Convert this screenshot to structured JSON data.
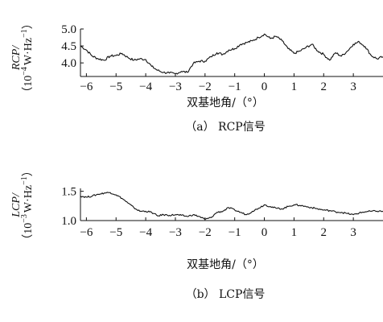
{
  "chart_data": [
    {
      "type": "line",
      "ylabel_var": "RCP/",
      "ylabel_unit_prefix": "（10",
      "ylabel_unit_exp": "−4",
      "ylabel_unit_mid": "W·Hz",
      "ylabel_unit_exp2": "−1",
      "ylabel_unit_suffix": "）",
      "xlabel": "双基地角/（°）",
      "caption": "（a） RCP信号",
      "xlim": [
        -6.2,
        4.0
      ],
      "ylim": [
        3.6,
        5.0
      ],
      "xticks": [
        "−6",
        "−5",
        "−4",
        "−3",
        "−2",
        "−1",
        "0",
        "1",
        "2",
        "3"
      ],
      "xtick_values": [
        -6,
        -5,
        -4,
        -3,
        -2,
        -1,
        0,
        1,
        2,
        3
      ],
      "yticks": [
        "5.0",
        "4.5",
        "4.0"
      ],
      "ytick_values": [
        5.0,
        4.5,
        4.0
      ],
      "series": [
        {
          "x": [
            -6.2,
            -6.0,
            -5.8,
            -5.6,
            -5.4,
            -5.2,
            -5.0,
            -4.8,
            -4.6,
            -4.4,
            -4.2,
            -4.0,
            -3.8,
            -3.6,
            -3.4,
            -3.2,
            -3.0,
            -2.8,
            -2.6,
            -2.4,
            -2.2,
            -2.0,
            -1.8,
            -1.6,
            -1.4,
            -1.2,
            -1.0,
            -0.8,
            -0.6,
            -0.4,
            -0.2,
            0.0,
            0.2,
            0.4,
            0.6,
            0.8,
            1.0,
            1.2,
            1.4,
            1.6,
            1.8,
            2.0,
            2.2,
            2.4,
            2.6,
            2.8,
            3.0,
            3.2,
            3.4,
            3.6,
            3.8,
            4.0
          ],
          "y": [
            4.5,
            4.38,
            4.2,
            4.12,
            4.08,
            4.2,
            4.22,
            4.28,
            4.16,
            4.08,
            4.12,
            4.1,
            3.9,
            3.78,
            3.72,
            3.7,
            3.68,
            3.75,
            3.72,
            3.98,
            4.05,
            4.05,
            4.18,
            4.3,
            4.25,
            4.38,
            4.42,
            4.55,
            4.6,
            4.65,
            4.75,
            4.85,
            4.72,
            4.78,
            4.65,
            4.42,
            4.28,
            4.35,
            4.45,
            4.55,
            4.35,
            4.25,
            4.08,
            4.3,
            4.2,
            4.35,
            4.55,
            4.62,
            4.48,
            4.22,
            4.12,
            4.18
          ]
        }
      ]
    },
    {
      "type": "line",
      "ylabel_var": "LCP/",
      "ylabel_unit_prefix": "（10",
      "ylabel_unit_exp": "−3",
      "ylabel_unit_mid": "W·Hz",
      "ylabel_unit_exp2": "−1",
      "ylabel_unit_suffix": "）",
      "xlabel": "双基地角/（°）",
      "caption": "（b） LCP信号",
      "xlim": [
        -6.2,
        4.0
      ],
      "ylim": [
        1.0,
        1.55
      ],
      "xticks": [
        "−6",
        "−5",
        "−4",
        "−3",
        "−2",
        "−1",
        "0",
        "1",
        "2",
        "3"
      ],
      "xtick_values": [
        -6,
        -5,
        -4,
        -3,
        -2,
        -1,
        0,
        1,
        2,
        3
      ],
      "yticks": [
        "1.5",
        "1.0"
      ],
      "ytick_values": [
        1.5,
        1.0
      ],
      "series": [
        {
          "x": [
            -6.2,
            -6.0,
            -5.8,
            -5.6,
            -5.4,
            -5.2,
            -5.0,
            -4.8,
            -4.6,
            -4.4,
            -4.2,
            -4.0,
            -3.8,
            -3.6,
            -3.4,
            -3.2,
            -3.0,
            -2.8,
            -2.6,
            -2.4,
            -2.2,
            -2.0,
            -1.8,
            -1.6,
            -1.4,
            -1.2,
            -1.0,
            -0.8,
            -0.6,
            -0.4,
            -0.2,
            0.0,
            0.2,
            0.4,
            0.6,
            0.8,
            1.0,
            1.2,
            1.4,
            1.6,
            1.8,
            2.0,
            2.2,
            2.4,
            2.6,
            2.8,
            3.0,
            3.2,
            3.4,
            3.6,
            3.8,
            4.0
          ],
          "y": [
            1.42,
            1.4,
            1.42,
            1.45,
            1.47,
            1.48,
            1.44,
            1.38,
            1.3,
            1.22,
            1.16,
            1.16,
            1.14,
            1.08,
            1.1,
            1.09,
            1.1,
            1.09,
            1.07,
            1.1,
            1.07,
            1.02,
            1.05,
            1.14,
            1.16,
            1.22,
            1.18,
            1.14,
            1.1,
            1.16,
            1.21,
            1.27,
            1.24,
            1.21,
            1.2,
            1.24,
            1.27,
            1.26,
            1.24,
            1.22,
            1.2,
            1.18,
            1.17,
            1.15,
            1.14,
            1.12,
            1.1,
            1.13,
            1.15,
            1.16,
            1.16,
            1.16
          ]
        }
      ]
    }
  ]
}
